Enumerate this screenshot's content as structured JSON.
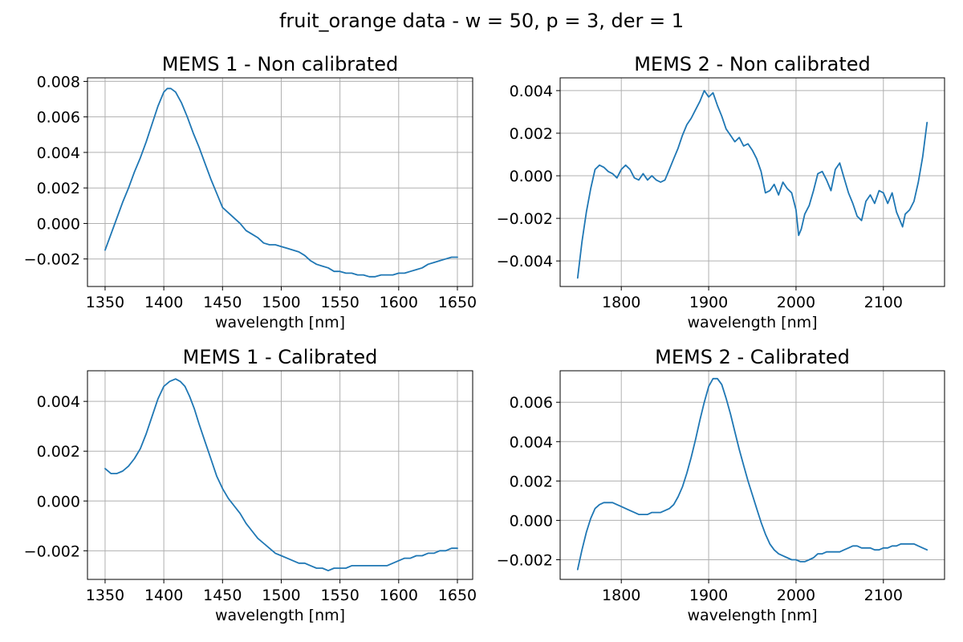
{
  "figure": {
    "suptitle": "fruit_orange data - w = 50, p = 3, der = 1",
    "line_color": "#1f77b4"
  },
  "chart_data": [
    {
      "type": "line",
      "title": "MEMS 1 - Non calibrated",
      "xlabel": "wavelength [nm]",
      "ylabel": "",
      "xlim": [
        1335,
        1663
      ],
      "ylim": [
        -0.00355,
        0.0082
      ],
      "xticks": [
        1350,
        1400,
        1450,
        1500,
        1550,
        1600,
        1650
      ],
      "yticks": [
        -0.002,
        0.0,
        0.002,
        0.004,
        0.006,
        0.008
      ],
      "ytick_labels": [
        "−0.002",
        "0.000",
        "0.002",
        "0.004",
        "0.006",
        "0.008"
      ],
      "grid": true,
      "series": [
        {
          "x": [
            1350,
            1355,
            1360,
            1365,
            1370,
            1375,
            1380,
            1385,
            1390,
            1395,
            1400,
            1403,
            1406,
            1410,
            1415,
            1420,
            1425,
            1430,
            1435,
            1440,
            1445,
            1450,
            1455,
            1460,
            1465,
            1470,
            1475,
            1480,
            1485,
            1490,
            1495,
            1500,
            1505,
            1510,
            1515,
            1520,
            1525,
            1530,
            1535,
            1540,
            1545,
            1550,
            1555,
            1560,
            1565,
            1570,
            1575,
            1580,
            1585,
            1590,
            1595,
            1600,
            1605,
            1610,
            1615,
            1620,
            1625,
            1630,
            1635,
            1640,
            1645,
            1650
          ],
          "y": [
            -0.0015,
            -0.0006,
            0.0003,
            0.0012,
            0.002,
            0.0029,
            0.0037,
            0.0046,
            0.0056,
            0.0066,
            0.0074,
            0.0076,
            0.0076,
            0.0074,
            0.0068,
            0.006,
            0.0051,
            0.0043,
            0.0034,
            0.0025,
            0.0017,
            0.0009,
            0.0006,
            0.0003,
            0.0,
            -0.0004,
            -0.0006,
            -0.0008,
            -0.0011,
            -0.0012,
            -0.0012,
            -0.0013,
            -0.0014,
            -0.0015,
            -0.0016,
            -0.0018,
            -0.0021,
            -0.0023,
            -0.0024,
            -0.0025,
            -0.0027,
            -0.0027,
            -0.0028,
            -0.0028,
            -0.0029,
            -0.0029,
            -0.003,
            -0.003,
            -0.0029,
            -0.0029,
            -0.0029,
            -0.0028,
            -0.0028,
            -0.0027,
            -0.0026,
            -0.0025,
            -0.0023,
            -0.0022,
            -0.0021,
            -0.002,
            -0.0019,
            -0.0019
          ]
        }
      ]
    },
    {
      "type": "line",
      "title": "MEMS 2 - Non calibrated",
      "xlabel": "wavelength [nm]",
      "ylabel": "",
      "xlim": [
        1730,
        2170
      ],
      "ylim": [
        -0.0052,
        0.0046
      ],
      "xticks": [
        1800,
        1900,
        2000,
        2100
      ],
      "yticks": [
        -0.004,
        -0.002,
        0.0,
        0.002,
        0.004
      ],
      "ytick_labels": [
        "−0.004",
        "−0.002",
        "0.000",
        "0.002",
        "0.004"
      ],
      "grid": true,
      "series": [
        {
          "x": [
            1750,
            1755,
            1760,
            1765,
            1770,
            1775,
            1780,
            1785,
            1790,
            1795,
            1800,
            1805,
            1810,
            1815,
            1820,
            1825,
            1830,
            1835,
            1840,
            1845,
            1850,
            1855,
            1860,
            1865,
            1870,
            1875,
            1880,
            1885,
            1890,
            1895,
            1900,
            1905,
            1910,
            1915,
            1920,
            1925,
            1930,
            1935,
            1940,
            1945,
            1950,
            1955,
            1960,
            1965,
            1970,
            1975,
            1980,
            1985,
            1990,
            1995,
            2000,
            2003,
            2006,
            2010,
            2015,
            2020,
            2025,
            2030,
            2035,
            2040,
            2045,
            2050,
            2055,
            2060,
            2065,
            2070,
            2075,
            2080,
            2085,
            2090,
            2095,
            2100,
            2105,
            2110,
            2115,
            2120,
            2122,
            2125,
            2130,
            2135,
            2140,
            2145,
            2150
          ],
          "y": [
            -0.0048,
            -0.0031,
            -0.0017,
            -0.0006,
            0.0003,
            0.0005,
            0.0004,
            0.0002,
            0.0001,
            -0.0001,
            0.0003,
            0.0005,
            0.0003,
            -0.0001,
            -0.0002,
            0.0001,
            -0.0002,
            0.0,
            -0.0002,
            -0.0003,
            -0.0002,
            0.0003,
            0.0008,
            0.0013,
            0.0019,
            0.0024,
            0.0027,
            0.0031,
            0.0035,
            0.004,
            0.0037,
            0.0039,
            0.0033,
            0.0028,
            0.0022,
            0.0019,
            0.0016,
            0.0018,
            0.0014,
            0.0015,
            0.0012,
            0.0008,
            0.0002,
            -0.0008,
            -0.0007,
            -0.0004,
            -0.0009,
            -0.0003,
            -0.0006,
            -0.0008,
            -0.0016,
            -0.0028,
            -0.0025,
            -0.0018,
            -0.0014,
            -0.0007,
            0.0001,
            0.0002,
            -0.0002,
            -0.0007,
            0.0003,
            0.0006,
            -0.0001,
            -0.0008,
            -0.0013,
            -0.0019,
            -0.0021,
            -0.0012,
            -0.0009,
            -0.0013,
            -0.0007,
            -0.0008,
            -0.0013,
            -0.0008,
            -0.0017,
            -0.0022,
            -0.0024,
            -0.0018,
            -0.0016,
            -0.0012,
            -0.0003,
            0.0009,
            0.0025
          ]
        }
      ]
    },
    {
      "type": "line",
      "title": "MEMS 1 - Calibrated",
      "xlabel": "wavelength [nm]",
      "ylabel": "",
      "xlim": [
        1335,
        1663
      ],
      "ylim": [
        -0.00315,
        0.00523
      ],
      "xticks": [
        1350,
        1400,
        1450,
        1500,
        1550,
        1600,
        1650
      ],
      "yticks": [
        -0.002,
        0.0,
        0.002,
        0.004
      ],
      "ytick_labels": [
        "−0.002",
        "0.000",
        "0.002",
        "0.004"
      ],
      "grid": true,
      "series": [
        {
          "x": [
            1350,
            1355,
            1360,
            1365,
            1370,
            1375,
            1380,
            1385,
            1390,
            1395,
            1400,
            1405,
            1410,
            1414,
            1418,
            1422,
            1426,
            1430,
            1435,
            1440,
            1445,
            1450,
            1455,
            1460,
            1465,
            1470,
            1475,
            1480,
            1485,
            1490,
            1495,
            1500,
            1505,
            1510,
            1515,
            1520,
            1525,
            1530,
            1535,
            1540,
            1545,
            1550,
            1555,
            1560,
            1565,
            1570,
            1575,
            1580,
            1585,
            1590,
            1595,
            1600,
            1605,
            1610,
            1615,
            1620,
            1625,
            1630,
            1635,
            1640,
            1645,
            1650
          ],
          "y": [
            0.0013,
            0.0011,
            0.0011,
            0.0012,
            0.0014,
            0.0017,
            0.0021,
            0.0027,
            0.0034,
            0.0041,
            0.0046,
            0.0048,
            0.0049,
            0.0048,
            0.0046,
            0.0042,
            0.0037,
            0.0031,
            0.0024,
            0.0017,
            0.001,
            0.0005,
            0.0001,
            -0.0002,
            -0.0005,
            -0.0009,
            -0.0012,
            -0.0015,
            -0.0017,
            -0.0019,
            -0.0021,
            -0.0022,
            -0.0023,
            -0.0024,
            -0.0025,
            -0.0025,
            -0.0026,
            -0.0027,
            -0.0027,
            -0.0028,
            -0.0027,
            -0.0027,
            -0.0027,
            -0.0026,
            -0.0026,
            -0.0026,
            -0.0026,
            -0.0026,
            -0.0026,
            -0.0026,
            -0.0025,
            -0.0024,
            -0.0023,
            -0.0023,
            -0.0022,
            -0.0022,
            -0.0021,
            -0.0021,
            -0.002,
            -0.002,
            -0.0019,
            -0.0019
          ]
        }
      ]
    },
    {
      "type": "line",
      "title": "MEMS 2 - Calibrated",
      "xlabel": "wavelength [nm]",
      "ylabel": "",
      "xlim": [
        1730,
        2170
      ],
      "ylim": [
        -0.003,
        0.0076
      ],
      "xticks": [
        1800,
        1900,
        2000,
        2100
      ],
      "yticks": [
        -0.002,
        0.0,
        0.002,
        0.004,
        0.006
      ],
      "ytick_labels": [
        "−0.002",
        "0.000",
        "0.002",
        "0.004",
        "0.006"
      ],
      "grid": true,
      "series": [
        {
          "x": [
            1750,
            1755,
            1760,
            1765,
            1770,
            1775,
            1780,
            1785,
            1790,
            1795,
            1800,
            1805,
            1810,
            1815,
            1820,
            1825,
            1830,
            1835,
            1840,
            1845,
            1850,
            1855,
            1860,
            1865,
            1870,
            1875,
            1880,
            1885,
            1890,
            1895,
            1900,
            1905,
            1910,
            1915,
            1920,
            1925,
            1930,
            1935,
            1940,
            1945,
            1950,
            1955,
            1960,
            1965,
            1970,
            1975,
            1980,
            1985,
            1990,
            1995,
            2000,
            2005,
            2010,
            2015,
            2020,
            2025,
            2030,
            2035,
            2040,
            2045,
            2050,
            2055,
            2060,
            2065,
            2070,
            2075,
            2080,
            2085,
            2090,
            2095,
            2100,
            2105,
            2110,
            2115,
            2120,
            2125,
            2130,
            2135,
            2140,
            2145,
            2150
          ],
          "y": [
            -0.0025,
            -0.0015,
            -0.0006,
            0.0001,
            0.0006,
            0.0008,
            0.0009,
            0.0009,
            0.0009,
            0.0008,
            0.0007,
            0.0006,
            0.0005,
            0.0004,
            0.0003,
            0.0003,
            0.0003,
            0.0004,
            0.0004,
            0.0004,
            0.0005,
            0.0006,
            0.0008,
            0.0012,
            0.0017,
            0.0024,
            0.0032,
            0.0041,
            0.0051,
            0.006,
            0.0068,
            0.0072,
            0.0072,
            0.0069,
            0.0062,
            0.0054,
            0.0045,
            0.0036,
            0.0028,
            0.002,
            0.0013,
            0.0006,
            -0.0001,
            -0.0007,
            -0.0012,
            -0.0015,
            -0.0017,
            -0.0018,
            -0.0019,
            -0.002,
            -0.002,
            -0.0021,
            -0.0021,
            -0.002,
            -0.0019,
            -0.0017,
            -0.0017,
            -0.0016,
            -0.0016,
            -0.0016,
            -0.0016,
            -0.0015,
            -0.0014,
            -0.0013,
            -0.0013,
            -0.0014,
            -0.0014,
            -0.0014,
            -0.0015,
            -0.0015,
            -0.0014,
            -0.0014,
            -0.0013,
            -0.0013,
            -0.0012,
            -0.0012,
            -0.0012,
            -0.0012,
            -0.0013,
            -0.0014,
            -0.0015
          ]
        }
      ]
    }
  ]
}
